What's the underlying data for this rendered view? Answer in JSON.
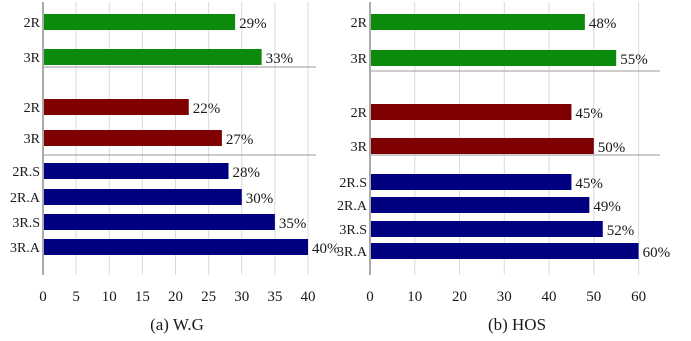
{
  "chart_data": [
    {
      "type": "bar",
      "orientation": "horizontal",
      "caption": "(a)  W.G",
      "xlim": [
        0,
        40
      ],
      "xticks": [
        0,
        5,
        10,
        15,
        20,
        25,
        30,
        35,
        40
      ],
      "grid": true,
      "value_suffix": "%",
      "groups": [
        {
          "color": "#0b8a0b",
          "bars": [
            {
              "label": "2R",
              "value": 29
            },
            {
              "label": "3R",
              "value": 33
            }
          ]
        },
        {
          "color": "#7f0000",
          "bars": [
            {
              "label": "2R",
              "value": 22
            },
            {
              "label": "3R",
              "value": 27
            }
          ]
        },
        {
          "color": "#000080",
          "bars": [
            {
              "label": "2R.S",
              "value": 28
            },
            {
              "label": "2R.A",
              "value": 30
            },
            {
              "label": "3R.S",
              "value": 35
            },
            {
              "label": "3R.A",
              "value": 40
            }
          ]
        }
      ]
    },
    {
      "type": "bar",
      "orientation": "horizontal",
      "caption": "(b)  HOS",
      "xlim": [
        0,
        63
      ],
      "xticks": [
        0,
        10,
        20,
        30,
        40,
        50,
        60
      ],
      "grid": true,
      "value_suffix": "%",
      "groups": [
        {
          "color": "#0b8a0b",
          "bars": [
            {
              "label": "2R",
              "value": 48
            },
            {
              "label": "3R",
              "value": 55
            }
          ]
        },
        {
          "color": "#7f0000",
          "bars": [
            {
              "label": "2R",
              "value": 45
            },
            {
              "label": "3R",
              "value": 50
            }
          ]
        },
        {
          "color": "#000080",
          "bars": [
            {
              "label": "2R.S",
              "value": 45
            },
            {
              "label": "2R.A",
              "value": 49
            },
            {
              "label": "3R.S",
              "value": 52
            },
            {
              "label": "3R.A",
              "value": 60
            }
          ]
        }
      ]
    }
  ]
}
